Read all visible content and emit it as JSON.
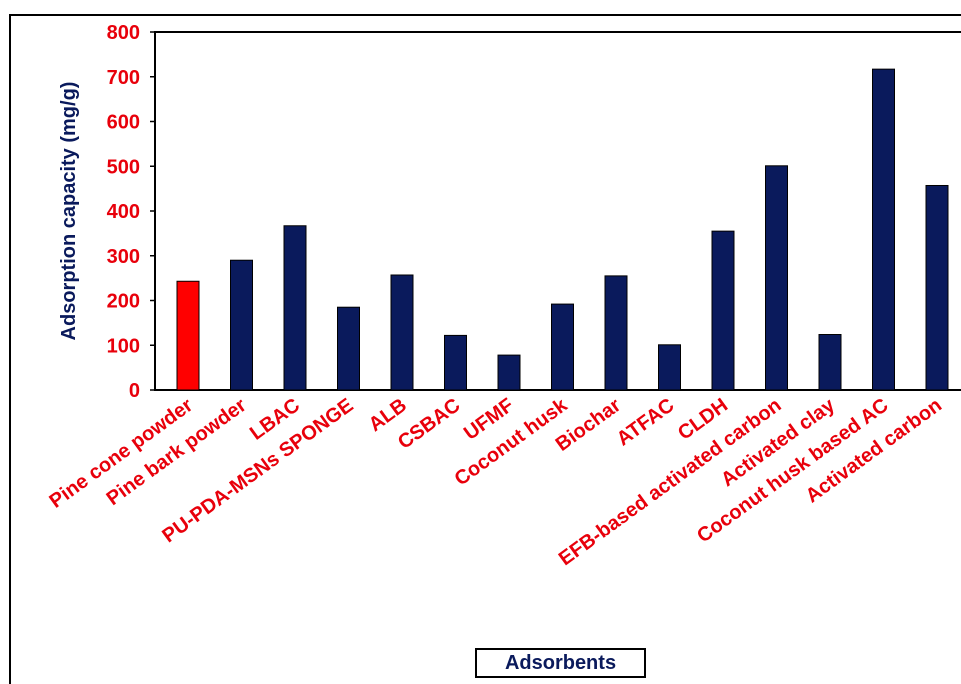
{
  "chart_data": {
    "type": "bar",
    "title": "",
    "xlabel": "Adsorbents",
    "ylabel": "Adsorption capacity (mg/g)",
    "ylim": [
      0,
      800
    ],
    "yticks": [
      0,
      100,
      200,
      300,
      400,
      500,
      600,
      700,
      800
    ],
    "grid": false,
    "categories": [
      "Pine cone powder",
      "Pine bark powder",
      "LBAC",
      "PU-PDA-MSNs SPONGE",
      "ALB",
      "CSBAC",
      "UFMF",
      "Coconut husk",
      "Biochar",
      "ATFAC",
      "CLDH",
      "EFB-based activated carbon",
      "Activated clay",
      "Coconut husk based AC",
      "Activated carbon"
    ],
    "values": [
      243,
      290,
      367,
      185,
      257,
      122,
      78,
      192,
      255,
      101,
      355,
      501,
      124,
      717,
      457
    ],
    "bar_colors": [
      "#ff0000",
      "#0a1a5c",
      "#0a1a5c",
      "#0a1a5c",
      "#0a1a5c",
      "#0a1a5c",
      "#0a1a5c",
      "#0a1a5c",
      "#0a1a5c",
      "#0a1a5c",
      "#0a1a5c",
      "#0a1a5c",
      "#0a1a5c",
      "#0a1a5c",
      "#0a1a5c"
    ],
    "highlight_color": "#ff0000",
    "series_color": "#0a1a5c",
    "label_color": "#e8000b"
  }
}
